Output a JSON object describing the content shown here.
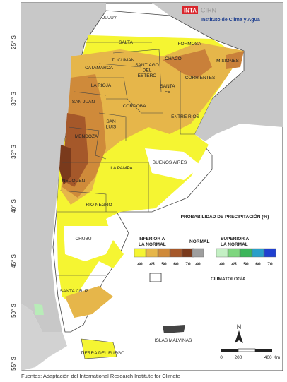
{
  "header": {
    "logo_inta": "INTA",
    "logo_cirn": "CIRN",
    "institute": "Instituto de Clima y Agua"
  },
  "latitude_labels": [
    "25° S",
    "30° S",
    "35° S",
    "40° S",
    "45° S",
    "50° S",
    "55° S"
  ],
  "provinces": [
    {
      "lines": [
        "JUJUY"
      ]
    },
    {
      "lines": [
        "SALTA"
      ]
    },
    {
      "lines": [
        "FORMOSA"
      ]
    },
    {
      "lines": [
        "MISIONES"
      ]
    },
    {
      "lines": [
        "CHACO"
      ]
    },
    {
      "lines": [
        "TUCUMAN"
      ]
    },
    {
      "lines": [
        "CATAMARCA"
      ]
    },
    {
      "lines": [
        "SANTIAGO",
        "DEL",
        "ESTERO"
      ]
    },
    {
      "lines": [
        "CORRIENTES"
      ]
    },
    {
      "lines": [
        "LA RIOJA"
      ]
    },
    {
      "lines": [
        "SANTA",
        "FE"
      ]
    },
    {
      "lines": [
        "SAN JUAN"
      ]
    },
    {
      "lines": [
        "CORDOBA"
      ]
    },
    {
      "lines": [
        "ENTRE RIOS"
      ]
    },
    {
      "lines": [
        "SAN",
        "LUIS"
      ]
    },
    {
      "lines": [
        "MENDOZA"
      ]
    },
    {
      "lines": [
        "BUENOS AIRES"
      ]
    },
    {
      "lines": [
        "LA PAMPA"
      ]
    },
    {
      "lines": [
        "NEUQUEN"
      ]
    },
    {
      "lines": [
        "RIO NEGRO"
      ]
    },
    {
      "lines": [
        "CHUBUT"
      ]
    },
    {
      "lines": [
        "SANTA CRUZ"
      ]
    },
    {
      "lines": [
        "TIERRA DEL FUEGO"
      ]
    },
    {
      "lines": [
        "ISLAS MALVINAS"
      ]
    }
  ],
  "legend": {
    "title": "PROBABILIDAD DE PRECIPITACIÓN (%)",
    "below": {
      "lines": [
        "INFERIOR A",
        "LA NORMAL"
      ],
      "ticks": [
        40,
        45,
        50,
        60,
        70
      ]
    },
    "normal": {
      "lines": [
        "NORMAL"
      ],
      "ticks": [
        40
      ]
    },
    "above": {
      "lines": [
        "SUPERIOR A",
        "LA NORMAL"
      ],
      "ticks": [
        40,
        45,
        50,
        60,
        70
      ]
    },
    "climatology": "CLIMATOLOGÍA"
  },
  "scale": {
    "north": "N",
    "ticks": [
      "0",
      "200",
      "400 Km"
    ]
  },
  "footer": "Fuentes: Adaptación del International Research Institute for Climate"
}
